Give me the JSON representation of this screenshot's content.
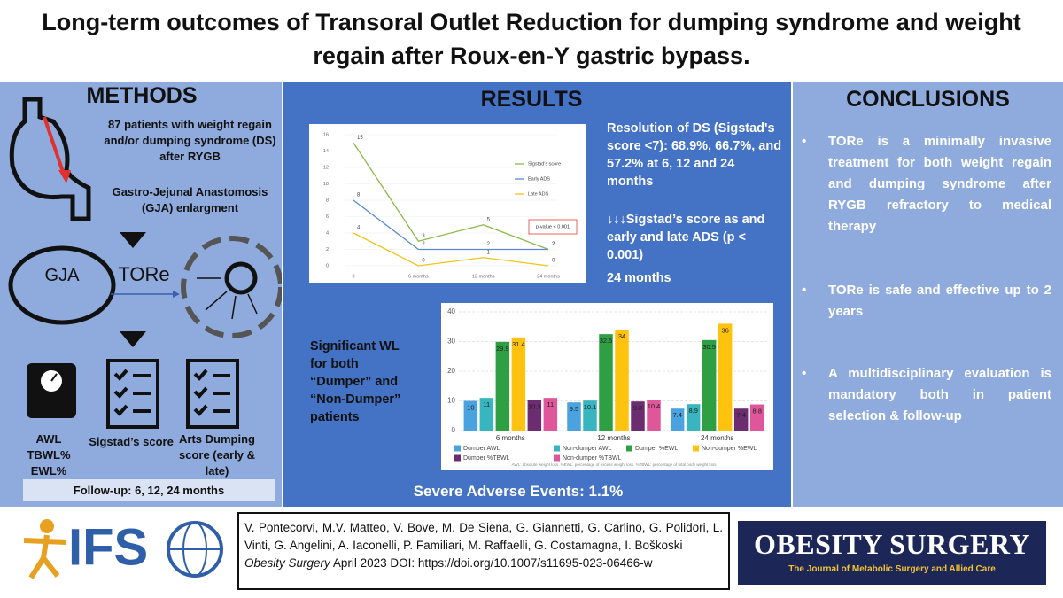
{
  "header": {
    "title": "Long-term outcomes of Transoral Outlet Reduction for dumping syndrome and weight regain after Roux-en-Y gastric bypass."
  },
  "methods": {
    "heading": "METHODS",
    "patients": "87 patients with weight regain and/or dumping syndrome (DS) after RYGB",
    "procedure": "Gastro-Jejunal Anastomosis (GJA) enlargment",
    "gja": "GJA",
    "tore": "TORe",
    "weight_measures": [
      "AWL",
      "TBWL%",
      "EWL%"
    ],
    "sigstad": "Sigstad’s score",
    "arts": "Arts Dumping score (early & late)",
    "followup": "Follow-up: 6, 12, 24 months"
  },
  "results": {
    "heading": "RESULTS",
    "ds_resolution": "Resolution of DS (Sigstad's score <7): 68.9%, 66.7%, and 57.2% at 6, 12 and 24 months",
    "scores": "↓↓↓Sigstad’s score as and early and late ADS (p < 0.001)",
    "scores_time": "24 months",
    "weight_loss": "Significant WL for both “Dumper” and “Non-Dumper” patients",
    "adverse": "Severe Adverse Events: 1.1%",
    "line_chart": {
      "type": "line",
      "categories": [
        "0",
        "6 months",
        "12 months",
        "24 months"
      ],
      "series": [
        {
          "name": "Sigstad's score",
          "color": "#8cb84c",
          "values": [
            15,
            3,
            5,
            2
          ]
        },
        {
          "name": "Early ADS",
          "color": "#5b8ad0",
          "values": [
            8,
            2,
            2,
            2
          ]
        },
        {
          "name": "Late ADS",
          "color": "#f0c419",
          "values": [
            4,
            0,
            1,
            0
          ]
        }
      ],
      "ylim": [
        0,
        16
      ],
      "yticks": [
        0,
        2,
        4,
        6,
        8,
        10,
        12,
        14,
        16
      ],
      "grid": true,
      "annotation": "p-value < 0.001"
    },
    "bar_chart": {
      "type": "bar",
      "categories": [
        "6 months",
        "12 months",
        "24 months"
      ],
      "series": [
        {
          "name": "Dumper AWL",
          "color": "#4aa3df",
          "values": [
            10,
            9.5,
            7.4
          ]
        },
        {
          "name": "Non-dumper AWL",
          "color": "#38b5bf",
          "values": [
            11,
            10.1,
            8.9
          ]
        },
        {
          "name": "Dumper %EWL",
          "color": "#2ea043",
          "values": [
            29.9,
            32.5,
            30.5
          ]
        },
        {
          "name": "Non-dumper %EWL",
          "color": "#ffc20e",
          "values": [
            31.4,
            34,
            36
          ]
        },
        {
          "name": "Dumper %TBWL",
          "color": "#6b2d6f",
          "values": [
            10.3,
            9.8,
            7.4
          ]
        },
        {
          "name": "Non-dumper %TBWL",
          "color": "#e0569b",
          "values": [
            11,
            10.4,
            8.8
          ]
        }
      ],
      "ylim": [
        0,
        40
      ],
      "yticks": [
        0,
        10,
        20,
        30,
        40
      ],
      "grid": true,
      "note": "AWL: absolute weight loss. %EWL: percentage of excess weight loss. %TBWL: percentage of total body weight loss"
    }
  },
  "conclusions": {
    "heading": "CONCLUSIONS",
    "items": [
      "TORe is a minimally invasive treatment for both weight regain and dumping syndrome after RYGB refractory to medical therapy",
      "TORe is safe and effective up to 2 years",
      "A multidisciplinary evaluation is mandatory both in patient selection & follow-up"
    ]
  },
  "footer": {
    "ifso_logo": "IFS",
    "authors": "V. Pontecorvi, M.V. Matteo, V. Bove, M. De Siena, G. Giannetti, G. Carlino, G. Polidori, L. Vinti, G. Angelini, A. Iaconelli, P. Familiari, M. Raffaelli, G. Costamagna, I. Boškoski",
    "journal": "Obesity Surgery",
    "citation": "April 2023  DOI: https://doi.org/10.1007/s11695-023-06466-w",
    "journal_logo": "OBESITY SURGERY",
    "journal_subtitle": "The Journal of Metabolic Surgery and Allied Care"
  }
}
